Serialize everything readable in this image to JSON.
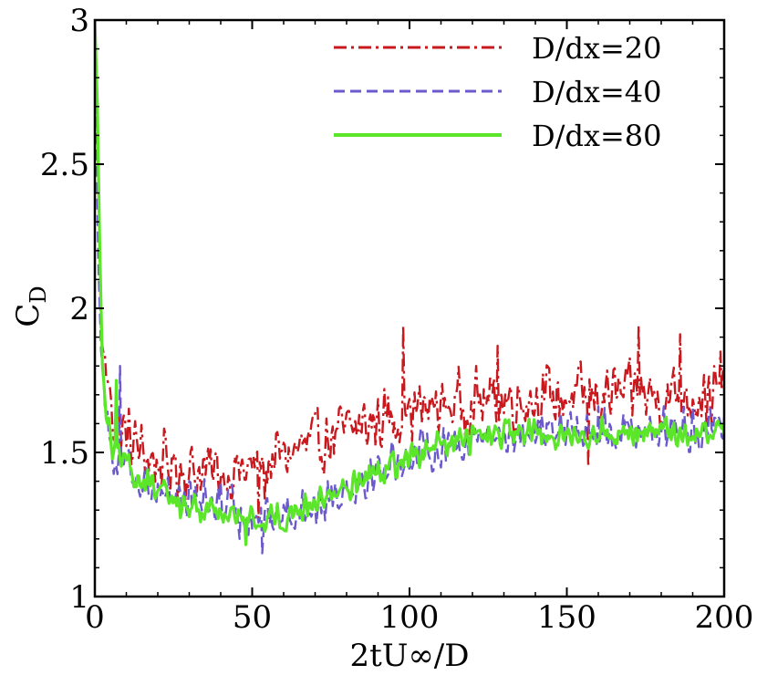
{
  "chart_data": {
    "type": "line",
    "title": "",
    "xlabel": "2tU∞/D",
    "ylabel_main": "C",
    "ylabel_sub": "D",
    "xlim": [
      0,
      200
    ],
    "ylim": [
      1,
      3
    ],
    "xticks": [
      0,
      50,
      100,
      150,
      200
    ],
    "yticks": [
      1,
      1.5,
      2,
      2.5,
      3
    ],
    "xtick_labels": [
      "0",
      "50",
      "100",
      "150",
      "200"
    ],
    "ytick_labels": [
      "1",
      "1.5",
      "2",
      "2.5",
      "3"
    ],
    "legend_position": "top-right",
    "series": [
      {
        "name": "D/dx=20",
        "color": "#c8191e",
        "dash": "dashdot",
        "base_points": [
          [
            0,
            3.0
          ],
          [
            1,
            2.5
          ],
          [
            2,
            1.9
          ],
          [
            4,
            1.75
          ],
          [
            6,
            1.62
          ],
          [
            10,
            1.56
          ],
          [
            15,
            1.5
          ],
          [
            20,
            1.46
          ],
          [
            30,
            1.44
          ],
          [
            40,
            1.43
          ],
          [
            50,
            1.44
          ],
          [
            60,
            1.49
          ],
          [
            70,
            1.53
          ],
          [
            80,
            1.57
          ],
          [
            90,
            1.61
          ],
          [
            100,
            1.64
          ],
          [
            110,
            1.66
          ],
          [
            120,
            1.68
          ],
          [
            130,
            1.68
          ],
          [
            140,
            1.69
          ],
          [
            150,
            1.69
          ],
          [
            160,
            1.7
          ],
          [
            170,
            1.7
          ],
          [
            180,
            1.7
          ],
          [
            190,
            1.7
          ],
          [
            200,
            1.7
          ]
        ],
        "noise_amplitude": 0.13,
        "spikes": [
          [
            5,
            2.05
          ],
          [
            98,
            1.94
          ],
          [
            128,
            1.87
          ],
          [
            173,
            1.94
          ],
          [
            186,
            1.91
          ],
          [
            199,
            1.85
          ],
          [
            52,
            1.27
          ],
          [
            54,
            1.33
          ],
          [
            157,
            1.45
          ]
        ]
      },
      {
        "name": "D/dx=40",
        "color": "#6a5acd",
        "dash": "dash",
        "base_points": [
          [
            0,
            2.95
          ],
          [
            1,
            2.2
          ],
          [
            2,
            1.85
          ],
          [
            4,
            1.6
          ],
          [
            6,
            1.5
          ],
          [
            10,
            1.44
          ],
          [
            20,
            1.38
          ],
          [
            30,
            1.34
          ],
          [
            40,
            1.32
          ],
          [
            50,
            1.29
          ],
          [
            55,
            1.27
          ],
          [
            60,
            1.29
          ],
          [
            70,
            1.32
          ],
          [
            80,
            1.38
          ],
          [
            90,
            1.44
          ],
          [
            100,
            1.49
          ],
          [
            110,
            1.52
          ],
          [
            120,
            1.55
          ],
          [
            130,
            1.56
          ],
          [
            140,
            1.57
          ],
          [
            150,
            1.57
          ],
          [
            160,
            1.58
          ],
          [
            170,
            1.58
          ],
          [
            180,
            1.58
          ],
          [
            190,
            1.58
          ],
          [
            200,
            1.59
          ]
        ],
        "noise_amplitude": 0.09,
        "spikes": [
          [
            5,
            1.95
          ],
          [
            8,
            1.8
          ],
          [
            53,
            1.15
          ],
          [
            46,
            1.2
          ],
          [
            40,
            1.4
          ],
          [
            160,
            1.66
          ]
        ]
      },
      {
        "name": "D/dx=80",
        "color": "#5ce62a",
        "dash": "solid",
        "base_points": [
          [
            0,
            3.0
          ],
          [
            0.8,
            2.7
          ],
          [
            1.6,
            2.2
          ],
          [
            2.4,
            1.8
          ],
          [
            4,
            1.6
          ],
          [
            6,
            1.5
          ],
          [
            10,
            1.45
          ],
          [
            20,
            1.36
          ],
          [
            30,
            1.31
          ],
          [
            40,
            1.3
          ],
          [
            48,
            1.26
          ],
          [
            55,
            1.27
          ],
          [
            60,
            1.28
          ],
          [
            70,
            1.33
          ],
          [
            80,
            1.38
          ],
          [
            90,
            1.44
          ],
          [
            100,
            1.48
          ],
          [
            110,
            1.52
          ],
          [
            120,
            1.55
          ],
          [
            130,
            1.56
          ],
          [
            140,
            1.56
          ],
          [
            150,
            1.56
          ],
          [
            160,
            1.57
          ],
          [
            170,
            1.57
          ],
          [
            180,
            1.57
          ],
          [
            190,
            1.57
          ],
          [
            200,
            1.57
          ]
        ],
        "noise_amplitude": 0.06,
        "spikes": [
          [
            5,
            1.92
          ],
          [
            48,
            1.18
          ],
          [
            7,
            1.75
          ]
        ]
      }
    ]
  }
}
